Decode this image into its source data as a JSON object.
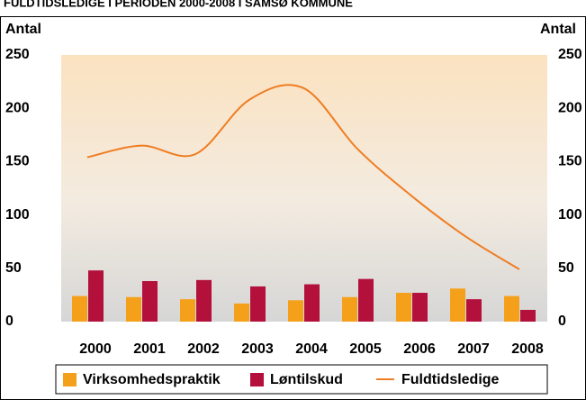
{
  "chart_data": {
    "type": "bar_line",
    "title": "FULDTIDSLEDIGE I PERIODEN 2000-2008 I SAMSØ KOMMUNE",
    "ylabel": "Antal",
    "y2label": "Antal",
    "categories": [
      "2000",
      "2001",
      "2002",
      "2003",
      "2004",
      "2005",
      "2006",
      "2007",
      "2008"
    ],
    "series": [
      {
        "name": "Virksomhedspraktik",
        "color": "#f5a01a",
        "type": "bar",
        "values": [
          24,
          23,
          21,
          17,
          20,
          23,
          27,
          31,
          24
        ]
      },
      {
        "name": "Løntilskud",
        "color": "#b3103c",
        "type": "bar",
        "values": [
          48,
          38,
          39,
          33,
          35,
          40,
          27,
          21,
          11
        ]
      },
      {
        "name": "Fuldtidsledige",
        "color": "#ef7d22",
        "type": "line",
        "axis": "y2",
        "values": [
          154,
          165,
          157,
          208,
          219,
          162,
          118,
          80,
          49
        ]
      }
    ],
    "ylim": [
      0,
      250
    ],
    "yticks": [
      0,
      50,
      100,
      150,
      200,
      250
    ],
    "y2lim": [
      0,
      250
    ],
    "y2ticks": [
      0,
      50,
      100,
      150,
      200,
      250
    ],
    "legend": "bottom"
  }
}
